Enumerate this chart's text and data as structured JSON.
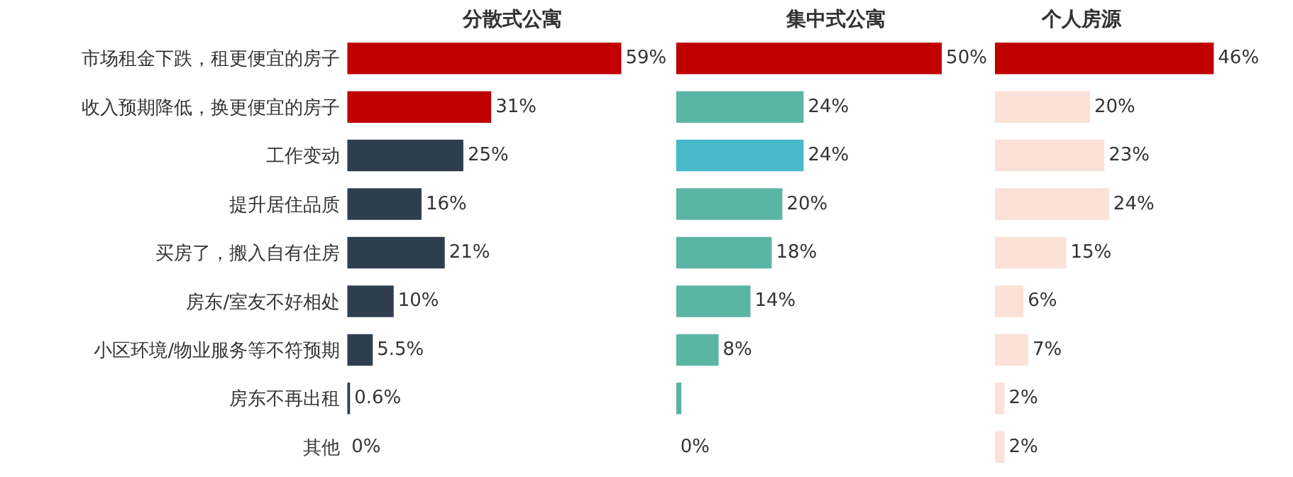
{
  "chart_data": [
    {
      "type": "bar",
      "orientation": "horizontal",
      "title": "分散式公寓",
      "tick_labels": "y",
      "categories": [
        "市场租金下跌，租更便宜的房子",
        "收入预期降低，换更便宜的房子",
        "工作变动",
        "提升居住品质",
        "买房了，搬入自有住房",
        "房东/室友不好相处",
        "小区环境/物业服务等不符预期",
        "房东不再出租",
        "其他"
      ],
      "values": [
        59,
        31,
        25,
        16,
        21,
        10,
        5.5,
        0.6,
        0
      ],
      "colors": [
        "#c00000",
        "#c00000",
        "#2e3e4f",
        "#2e3e4f",
        "#2e3e4f",
        "#2e3e4f",
        "#2e3e4f",
        "#2e3e4f",
        "#2e3e4f"
      ],
      "value_labels": [
        "59%",
        "31%",
        "25%",
        "16%",
        "21%",
        "10%",
        "5.5%",
        "0.6%",
        "0%"
      ]
    },
    {
      "type": "bar",
      "orientation": "horizontal",
      "title": "集中式公寓",
      "tick_labels": false,
      "categories": [
        "市场租金下跌，租更便宜的房子",
        "收入预期降低，换更便宜的房子",
        "工作变动",
        "提升居住品质",
        "买房了，搬入自有住房",
        "房东/室友不好相处",
        "小区环境/物业服务等不符预期",
        "房东不再出租",
        "其他"
      ],
      "values": [
        50,
        24,
        24,
        20,
        18,
        14,
        8,
        1,
        0
      ],
      "colors": [
        "#c00000",
        "#5bb5a4",
        "#47b9c9",
        "#5bb5a4",
        "#5bb5a4",
        "#5bb5a4",
        "#5bb5a4",
        "#5bb5a4",
        "#5bb5a4"
      ],
      "value_labels": [
        "50%",
        "24%",
        "24%",
        "20%",
        "18%",
        "14%",
        "8%",
        null,
        "0%"
      ]
    },
    {
      "type": "bar",
      "orientation": "horizontal",
      "title": "个人房源",
      "tick_labels": false,
      "categories": [
        "市场租金下跌，租更便宜的房子",
        "收入预期降低，换更便宜的房子",
        "工作变动",
        "提升居住品质",
        "买房了，搬入自有住房",
        "房东/室友不好相处",
        "小区环境/物业服务等不符预期",
        "房东不再出租",
        "其他"
      ],
      "values": [
        46,
        20,
        23,
        24,
        15,
        6,
        7,
        2,
        2
      ],
      "colors": [
        "#c00000",
        "#fbe1d7",
        "#fbe1d7",
        "#fbe1d7",
        "#fbe1d7",
        "#fbe1d7",
        "#fbe1d7",
        "#fbe1d7",
        "#fbe1d7"
      ],
      "value_labels": [
        "46%",
        "20%",
        "23%",
        "24%",
        "15%",
        "6%",
        "7%",
        "2%",
        "2%"
      ]
    }
  ]
}
